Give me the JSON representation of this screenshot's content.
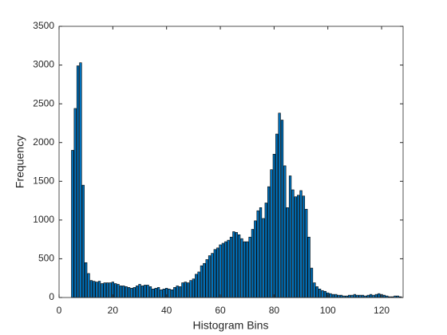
{
  "chart_data": {
    "type": "bar",
    "xlabel": "Histogram Bins",
    "ylabel": "Frequency",
    "x": [
      5,
      6,
      7,
      8,
      9,
      10,
      11,
      12,
      13,
      14,
      15,
      16,
      17,
      18,
      19,
      20,
      21,
      22,
      23,
      24,
      25,
      26,
      27,
      28,
      29,
      30,
      31,
      32,
      33,
      34,
      35,
      36,
      37,
      38,
      39,
      40,
      41,
      42,
      43,
      44,
      45,
      46,
      47,
      48,
      49,
      50,
      51,
      52,
      53,
      54,
      55,
      56,
      57,
      58,
      59,
      60,
      61,
      62,
      63,
      64,
      65,
      66,
      67,
      68,
      69,
      70,
      71,
      72,
      73,
      74,
      75,
      76,
      77,
      78,
      79,
      80,
      81,
      82,
      83,
      84,
      85,
      86,
      87,
      88,
      89,
      90,
      91,
      92,
      93,
      94,
      95,
      96,
      97,
      98,
      99,
      100,
      101,
      102,
      103,
      104,
      105,
      106,
      107,
      108,
      109,
      110,
      111,
      112,
      113,
      114,
      115,
      116,
      117,
      118,
      119,
      120,
      121,
      122,
      123,
      124,
      125,
      126,
      127
    ],
    "values": [
      1900,
      2440,
      2990,
      3030,
      1450,
      450,
      310,
      220,
      210,
      200,
      210,
      180,
      190,
      190,
      190,
      200,
      180,
      170,
      150,
      150,
      140,
      130,
      120,
      130,
      150,
      170,
      150,
      160,
      160,
      140,
      110,
      120,
      130,
      100,
      110,
      120,
      110,
      100,
      130,
      150,
      140,
      190,
      200,
      190,
      220,
      240,
      300,
      330,
      410,
      440,
      490,
      540,
      570,
      620,
      640,
      680,
      700,
      720,
      740,
      780,
      850,
      840,
      810,
      760,
      720,
      720,
      780,
      880,
      990,
      1120,
      1160,
      1020,
      1220,
      1430,
      1650,
      1850,
      2110,
      2380,
      2290,
      1700,
      1160,
      1570,
      1390,
      1300,
      1320,
      1380,
      1310,
      1140,
      780,
      380,
      190,
      140,
      110,
      90,
      80,
      60,
      50,
      40,
      40,
      30,
      30,
      20,
      20,
      30,
      30,
      40,
      30,
      30,
      30,
      20,
      30,
      40,
      30,
      40,
      50,
      40,
      30,
      20,
      10,
      10,
      20,
      20,
      10
    ],
    "color": "#0072bd",
    "xlim": [
      0,
      128
    ],
    "xticks": [
      0,
      20,
      40,
      60,
      80,
      100,
      120
    ],
    "ylim": [
      0,
      3500
    ],
    "yticks": [
      0,
      500,
      1000,
      1500,
      2000,
      2500,
      3000,
      3500
    ]
  }
}
